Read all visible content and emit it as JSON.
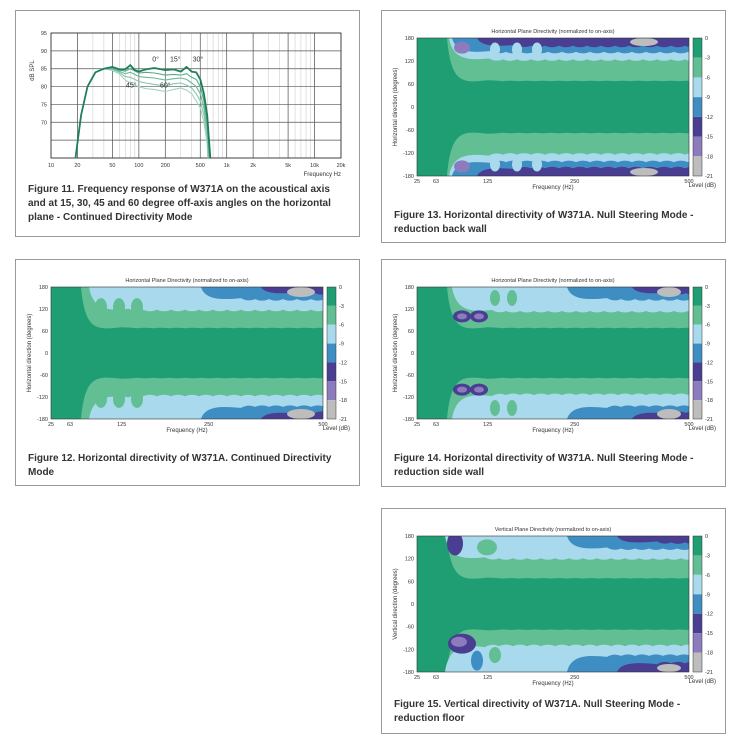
{
  "chart_data": [
    {
      "id": "fig11",
      "type": "line",
      "caption": "Figure 11. Frequency response of W371A on the acoustical axis and at 15, 30, 45 and 60 degree off-axis angles on the horizontal plane - Continued Directivity Mode",
      "ylabel": "dB SPL",
      "xlabel": "Frequency Hz",
      "x_scale": "log",
      "xlim": [
        10,
        20000
      ],
      "ylim": [
        60,
        95
      ],
      "xticks": [
        {
          "v": 10,
          "label": "10"
        },
        {
          "v": 20,
          "label": "20"
        },
        {
          "v": 50,
          "label": "50"
        },
        {
          "v": 100,
          "label": "100"
        },
        {
          "v": 200,
          "label": "200"
        },
        {
          "v": 500,
          "label": "500"
        },
        {
          "v": 1000,
          "label": "1k"
        },
        {
          "v": 2000,
          "label": "2k"
        },
        {
          "v": 5000,
          "label": "5k"
        },
        {
          "v": 10000,
          "label": "10k"
        },
        {
          "v": 20000,
          "label": "20k"
        }
      ],
      "yticks": [
        {
          "v": 70,
          "label": "70"
        },
        {
          "v": 75,
          "label": "75"
        },
        {
          "v": 80,
          "label": "80"
        },
        {
          "v": 85,
          "label": "85"
        },
        {
          "v": 90,
          "label": "90"
        },
        {
          "v": 95,
          "label": "95"
        }
      ],
      "grid": true,
      "annotations": [
        {
          "text": "0°",
          "x": 155,
          "y": 87
        },
        {
          "text": "15°",
          "x": 260,
          "y": 87
        },
        {
          "text": "30°",
          "x": 470,
          "y": 87
        },
        {
          "text": "45°",
          "x": 82,
          "y": 79.8
        },
        {
          "text": "60°",
          "x": 200,
          "y": 79.8
        }
      ],
      "series": [
        {
          "color": "#1e7f58",
          "values": [
            [
              19,
              60
            ],
            [
              22,
              72
            ],
            [
              26,
              80
            ],
            [
              32,
              84
            ],
            [
              40,
              85
            ],
            [
              50,
              85.5
            ],
            [
              60,
              84.8
            ],
            [
              70,
              84.8
            ],
            [
              80,
              86
            ],
            [
              90,
              84.6
            ],
            [
              100,
              84.2
            ],
            [
              120,
              84.8
            ],
            [
              150,
              85.2
            ],
            [
              200,
              84.6
            ],
            [
              250,
              84.8
            ],
            [
              300,
              84.2
            ],
            [
              350,
              85.5
            ],
            [
              400,
              84.2
            ],
            [
              450,
              84
            ],
            [
              500,
              82
            ],
            [
              550,
              78
            ],
            [
              600,
              72
            ],
            [
              650,
              60
            ]
          ]
        },
        {
          "color": "#5aa98c",
          "values": [
            [
              19,
              60
            ],
            [
              22,
              72
            ],
            [
              26,
              80
            ],
            [
              32,
              84
            ],
            [
              40,
              85
            ],
            [
              50,
              85.3
            ],
            [
              60,
              84.6
            ],
            [
              70,
              84.3
            ],
            [
              80,
              85
            ],
            [
              90,
              84.4
            ],
            [
              100,
              83.8
            ],
            [
              120,
              84
            ],
            [
              150,
              83.8
            ],
            [
              200,
              83.2
            ],
            [
              250,
              83.4
            ],
            [
              300,
              83.2
            ],
            [
              350,
              83.6
            ],
            [
              400,
              82.6
            ],
            [
              450,
              82
            ],
            [
              500,
              80
            ],
            [
              550,
              76
            ],
            [
              600,
              70
            ],
            [
              640,
              60
            ]
          ]
        },
        {
          "color": "#6fb89c",
          "values": [
            [
              19,
              60
            ],
            [
              22,
              72
            ],
            [
              26,
              80
            ],
            [
              32,
              84
            ],
            [
              40,
              85
            ],
            [
              50,
              85
            ],
            [
              60,
              84.3
            ],
            [
              70,
              83.6
            ],
            [
              80,
              84
            ],
            [
              90,
              83.4
            ],
            [
              100,
              82.8
            ],
            [
              120,
              82.6
            ],
            [
              150,
              82.4
            ],
            [
              200,
              81.8
            ],
            [
              250,
              82.2
            ],
            [
              300,
              82.4
            ],
            [
              350,
              82
            ],
            [
              400,
              81
            ],
            [
              450,
              80
            ],
            [
              500,
              78
            ],
            [
              550,
              74
            ],
            [
              600,
              68
            ],
            [
              630,
              60
            ]
          ]
        },
        {
          "color": "#88c6ae",
          "values": [
            [
              19,
              60
            ],
            [
              22,
              72
            ],
            [
              26,
              80
            ],
            [
              32,
              84
            ],
            [
              40,
              85
            ],
            [
              50,
              84.8
            ],
            [
              60,
              84
            ],
            [
              70,
              82.8
            ],
            [
              80,
              82.6
            ],
            [
              90,
              82
            ],
            [
              100,
              81.4
            ],
            [
              120,
              81
            ],
            [
              150,
              80.6
            ],
            [
              200,
              80.2
            ],
            [
              250,
              80.8
            ],
            [
              300,
              81
            ],
            [
              350,
              80.4
            ],
            [
              400,
              79.6
            ],
            [
              450,
              78
            ],
            [
              500,
              76
            ],
            [
              550,
              72
            ],
            [
              600,
              66
            ],
            [
              620,
              60
            ]
          ]
        },
        {
          "color": "#a2d4c0",
          "values": [
            [
              19,
              60
            ],
            [
              22,
              72
            ],
            [
              26,
              80
            ],
            [
              32,
              84
            ],
            [
              40,
              85
            ],
            [
              50,
              84.5
            ],
            [
              60,
              83.6
            ],
            [
              70,
              81.8
            ],
            [
              80,
              81
            ],
            [
              90,
              80.4
            ],
            [
              100,
              80
            ],
            [
              120,
              79.4
            ],
            [
              150,
              79.2
            ],
            [
              200,
              78.6
            ],
            [
              250,
              79.2
            ],
            [
              300,
              79.6
            ],
            [
              350,
              79
            ],
            [
              400,
              78
            ],
            [
              450,
              76
            ],
            [
              500,
              74
            ],
            [
              550,
              70
            ],
            [
              600,
              64
            ],
            [
              610,
              60
            ]
          ]
        }
      ]
    },
    {
      "id": "fig13",
      "type": "heatmap",
      "caption": "Figure 13. Horizontal directivity of W371A. Null Steering Mode - reduction back wall",
      "title": "Horizontal Plane Directivity (normalized to on-axis)",
      "ylabel": "Horizontal direction (degrees)",
      "xlabel": "Frequency (Hz)",
      "yticks": [
        "180",
        "120",
        "60",
        "0",
        "-60",
        "-120",
        "-180"
      ],
      "xticks": [
        "25",
        "63",
        "125",
        "250",
        "500"
      ],
      "colorbar_label": "Level (dB)",
      "colorbar_ticks": [
        "0",
        "-3",
        "-6",
        "-9",
        "-12",
        "-15",
        "-18",
        "-21"
      ],
      "style": "back"
    },
    {
      "id": "fig12",
      "type": "heatmap",
      "caption": "Figure 12. Horizontal directivity of W371A. Continued Directivity Mode",
      "title": "Horizontal Plane Directivity (normalized to on-axis)",
      "ylabel": "Horizontal direction (degrees)",
      "xlabel": "Frequency (Hz)",
      "yticks": [
        "180",
        "120",
        "60",
        "0",
        "-60",
        "-120",
        "-180"
      ],
      "xticks": [
        "25",
        "63",
        "125",
        "250",
        "500"
      ],
      "colorbar_label": "Level (dB)",
      "colorbar_ticks": [
        "0",
        "-3",
        "-6",
        "-9",
        "-12",
        "-15",
        "-18",
        "-21"
      ],
      "style": "continued"
    },
    {
      "id": "fig14",
      "type": "heatmap",
      "caption": "Figure 14. Horizontal directivity of W371A. Null Steering Mode - reduction side wall",
      "title": "Horizontal Plane Directivity (normalized to on-axis)",
      "ylabel": "Horizontal direction (degrees)",
      "xlabel": "Frequency (Hz)",
      "yticks": [
        "180",
        "120",
        "60",
        "0",
        "-60",
        "-120",
        "-180"
      ],
      "xticks": [
        "25",
        "63",
        "125",
        "250",
        "500"
      ],
      "colorbar_label": "Level (dB)",
      "colorbar_ticks": [
        "0",
        "-3",
        "-6",
        "-9",
        "-12",
        "-15",
        "-18",
        "-21"
      ],
      "style": "side"
    },
    {
      "id": "fig15",
      "type": "heatmap",
      "caption": "Figure 15. Vertical directivity of W371A. Null Steering Mode - reduction floor",
      "title": "Vertical Plane Directivity (normalized to on-axis)",
      "ylabel": "Vertical direction (degrees)",
      "xlabel": "Frequency (Hz)",
      "yticks": [
        "180",
        "120",
        "60",
        "0",
        "-60",
        "-120",
        "-180"
      ],
      "xticks": [
        "25",
        "63",
        "125",
        "250",
        "500"
      ],
      "colorbar_label": "Level (dB)",
      "colorbar_ticks": [
        "0",
        "-3",
        "-6",
        "-9",
        "-12",
        "-15",
        "-18",
        "-21"
      ],
      "style": "floor"
    }
  ],
  "colors": {
    "levels": [
      "#1f9e74",
      "#62bf94",
      "#a9d9ec",
      "#3f8ec3",
      "#4a3e92",
      "#8c7bbd",
      "#bdbdbd"
    ]
  }
}
